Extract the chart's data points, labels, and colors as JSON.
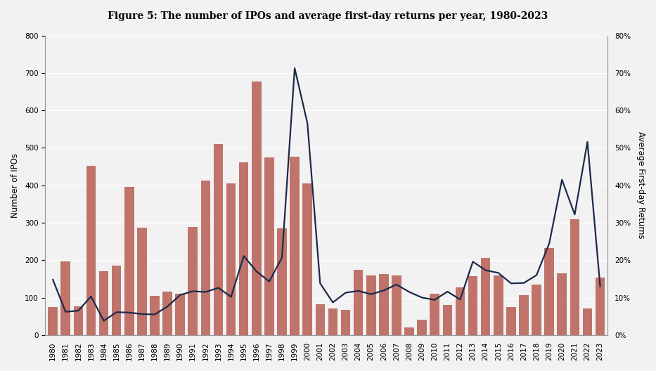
{
  "title": "Figure 5: The number of IPOs and average first-day returns per year, 1980-2023",
  "years": [
    1980,
    1981,
    1982,
    1983,
    1984,
    1985,
    1986,
    1987,
    1988,
    1989,
    1990,
    1991,
    1992,
    1993,
    1994,
    1995,
    1996,
    1997,
    1998,
    1999,
    2000,
    2001,
    2002,
    2003,
    2004,
    2005,
    2006,
    2007,
    2008,
    2009,
    2010,
    2011,
    2012,
    2013,
    2014,
    2015,
    2016,
    2017,
    2018,
    2019,
    2020,
    2021,
    2022,
    2023
  ],
  "ipo_counts": [
    75,
    197,
    77,
    452,
    171,
    186,
    396,
    286,
    105,
    116,
    110,
    288,
    412,
    510,
    406,
    461,
    677,
    474,
    285,
    476,
    406,
    83,
    70,
    67,
    174,
    159,
    162,
    159,
    21,
    41,
    110,
    81,
    128,
    157,
    206,
    159,
    75,
    107,
    134,
    232,
    165,
    309,
    71,
    153
  ],
  "avg_returns": [
    0.148,
    0.062,
    0.065,
    0.103,
    0.038,
    0.061,
    0.06,
    0.056,
    0.055,
    0.076,
    0.107,
    0.117,
    0.115,
    0.126,
    0.102,
    0.211,
    0.17,
    0.143,
    0.207,
    0.713,
    0.566,
    0.138,
    0.087,
    0.113,
    0.118,
    0.109,
    0.119,
    0.135,
    0.115,
    0.1,
    0.094,
    0.116,
    0.095,
    0.196,
    0.173,
    0.166,
    0.138,
    0.139,
    0.16,
    0.245,
    0.415,
    0.322,
    0.516,
    0.13
  ],
  "bar_color": "#c0736a",
  "line_color": "#1b2a4a",
  "ylabel_left": "Number of IPOs",
  "ylabel_right": "Average First-day Returns",
  "ylim_left": [
    0,
    800
  ],
  "ylim_right": [
    0,
    0.8
  ],
  "yticks_left": [
    0,
    100,
    200,
    300,
    400,
    500,
    600,
    700,
    800
  ],
  "yticks_right": [
    0.0,
    0.1,
    0.2,
    0.3,
    0.4,
    0.5,
    0.6,
    0.7,
    0.8
  ],
  "background_color": "#f2f2f2",
  "plot_bg_color": "#f2f2f2",
  "title_fontsize": 10,
  "axis_fontsize": 8.5,
  "tick_fontsize": 7.5,
  "grid_color": "#ffffff",
  "spine_color": "#999999"
}
